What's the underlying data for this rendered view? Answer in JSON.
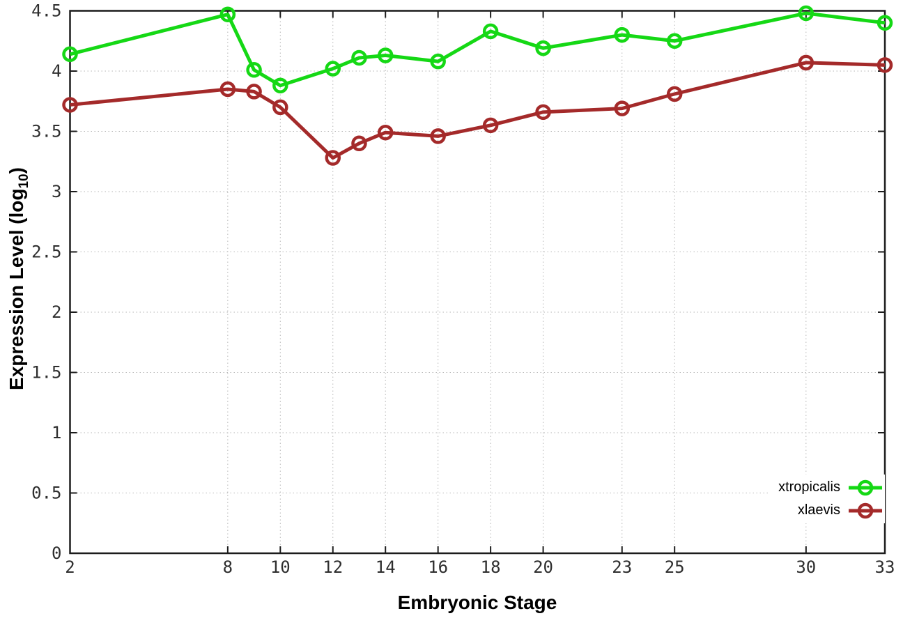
{
  "figure": {
    "background": "#ffffff",
    "border_color": "#1c1c1c",
    "grid_color": "#b5b5b5",
    "tick_label_color": "#2e2e2e",
    "ylabel_prefix": "Expression Level (log",
    "ylabel_sub": "10",
    "ylabel_suffix": ")"
  },
  "chart_data": {
    "type": "line",
    "title": "",
    "xlabel": "Embryonic Stage",
    "ylabel": "Expression Level (log10)",
    "x": [
      2,
      8,
      9,
      10,
      12,
      13,
      14,
      16,
      18,
      20,
      23,
      25,
      30,
      33
    ],
    "series": [
      {
        "name": "xtropicalis",
        "color": "#15d815",
        "values": [
          4.14,
          4.47,
          4.01,
          3.88,
          4.02,
          4.11,
          4.13,
          4.08,
          4.33,
          4.19,
          4.3,
          4.25,
          4.48,
          4.4
        ]
      },
      {
        "name": "xlaevis",
        "color": "#a42a2a",
        "values": [
          3.72,
          3.85,
          3.83,
          3.7,
          3.28,
          3.4,
          3.49,
          3.46,
          3.55,
          3.66,
          3.69,
          3.81,
          4.07,
          4.05
        ]
      }
    ],
    "x_tick_labels": [
      "2",
      "8",
      "10",
      "12",
      "14",
      "16",
      "18",
      "20",
      "23",
      "25",
      "30",
      "33"
    ],
    "y_tick_labels": [
      "0",
      "0.5",
      "1",
      "1.5",
      "2",
      "2.5",
      "3",
      "3.5",
      "4",
      "4.5"
    ],
    "xlim": [
      2,
      33
    ],
    "ylim": [
      0,
      4.5
    ],
    "grid": true,
    "grid_style": "dotted",
    "legend_position": "bottom-right",
    "marker": "open-circle",
    "line_width": 5,
    "marker_radius": 9,
    "marker_stroke": 4.5
  }
}
